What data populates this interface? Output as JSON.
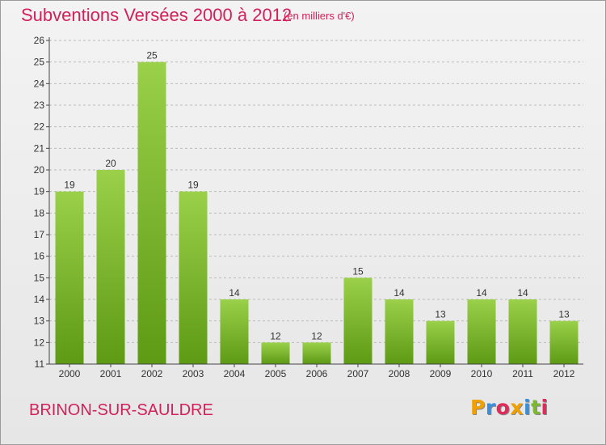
{
  "header": {
    "title": "Subventions Versées 2000 à 2012",
    "subtitle": "(en milliers d'€)"
  },
  "footer": {
    "commune": "BRINON-SUR-SAULDRE",
    "logo_letters": [
      "P",
      "r",
      "o",
      "x",
      "i",
      "t",
      "i"
    ],
    "logo_colors": [
      "#f0a000",
      "#3a8fd8",
      "#e02a5a",
      "#f0a000",
      "#3a8fd8",
      "#7cb82f",
      "#e02a5a"
    ]
  },
  "colors": {
    "bar_top": "#9ad04a",
    "bar_bottom": "#5e9a14",
    "grid": "#bbbbbb",
    "axis": "#444444",
    "title": "#d2205a"
  },
  "chart_data": {
    "type": "bar",
    "title": "Subventions Versées 2000 à 2012",
    "subtitle": "(en milliers d'€)",
    "categories": [
      "2000",
      "2001",
      "2002",
      "2003",
      "2004",
      "2005",
      "2006",
      "2007",
      "2008",
      "2009",
      "2010",
      "2011",
      "2012"
    ],
    "values": [
      19,
      20,
      25,
      19,
      14,
      12,
      12,
      15,
      14,
      13,
      14,
      14,
      13
    ],
    "y_ticks": [
      11,
      12,
      13,
      14,
      15,
      16,
      17,
      18,
      19,
      20,
      21,
      22,
      23,
      24,
      25,
      26
    ],
    "ylim": [
      11,
      26
    ],
    "xlabel": "",
    "ylabel": "",
    "grid": true,
    "grid_style": "dashed horizontal"
  }
}
